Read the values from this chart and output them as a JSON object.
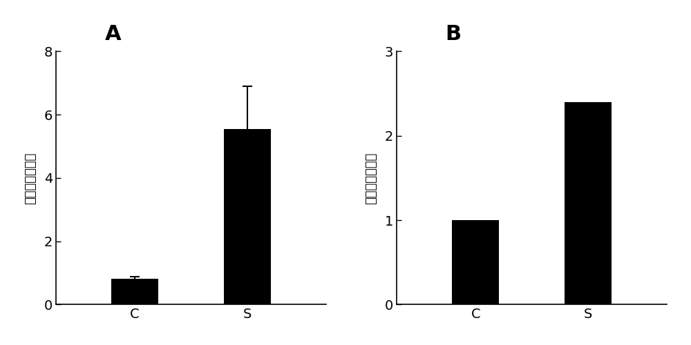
{
  "panel_A": {
    "label": "A",
    "categories": [
      "C",
      "S"
    ],
    "values": [
      0.82,
      5.55
    ],
    "errors": [
      0.07,
      1.35
    ],
    "ylim": [
      0,
      8
    ],
    "yticks": [
      0,
      2,
      4,
      6,
      8
    ],
    "ylabel": "基因相对表达量"
  },
  "panel_B": {
    "label": "B",
    "categories": [
      "C",
      "S"
    ],
    "values": [
      1.0,
      2.4
    ],
    "errors": [
      0,
      0
    ],
    "ylim": [
      0,
      3
    ],
    "yticks": [
      0,
      1,
      2,
      3
    ],
    "ylabel": "基因相对表达量"
  },
  "bar_color": "#000000",
  "bar_width": 0.42,
  "background_color": "#ffffff",
  "tick_fontsize": 14,
  "ylabel_fontsize": 13,
  "panel_label_fontsize": 22,
  "xtick_fontsize": 14
}
